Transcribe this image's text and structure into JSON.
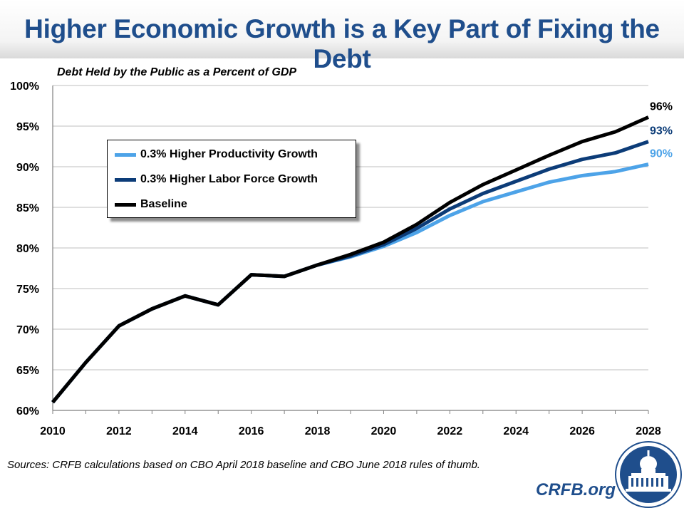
{
  "header": {
    "title": "Higher Economic Growth is a Key Part of Fixing the Debt"
  },
  "chart_data": {
    "type": "line",
    "title": "Debt Held by the Public as a Percent of GDP",
    "x": [
      2010,
      2011,
      2012,
      2013,
      2014,
      2015,
      2016,
      2017,
      2018,
      2019,
      2020,
      2021,
      2022,
      2023,
      2024,
      2025,
      2026,
      2027,
      2028
    ],
    "x_tick_labels": [
      "2010",
      "2012",
      "2014",
      "2016",
      "2018",
      "2020",
      "2022",
      "2024",
      "2026",
      "2028"
    ],
    "y_tick_labels": [
      "60%",
      "65%",
      "70%",
      "75%",
      "80%",
      "85%",
      "90%",
      "95%",
      "100%"
    ],
    "ylim": [
      60,
      100
    ],
    "xlim": [
      2010,
      2028
    ],
    "grid": true,
    "legend_position": "upper-left",
    "series": [
      {
        "name": "0.3% Higher Productivity Growth",
        "color": "#4da3e8",
        "values": [
          61,
          65.9,
          70.4,
          72.5,
          74.1,
          73,
          76.7,
          76.5,
          77.9,
          78.9,
          80.2,
          81.9,
          84,
          85.7,
          86.9,
          88.1,
          88.9,
          89.4,
          90.3
        ],
        "end_label": "90%"
      },
      {
        "name": "0.3% Higher Labor Force Growth",
        "color": "#0c3c78",
        "values": [
          61,
          65.9,
          70.4,
          72.5,
          74.1,
          73,
          76.7,
          76.5,
          77.9,
          79,
          80.4,
          82.4,
          84.8,
          86.7,
          88.2,
          89.7,
          90.9,
          91.7,
          93.1
        ],
        "end_label": "93%"
      },
      {
        "name": "Baseline",
        "color": "#000000",
        "values": [
          61,
          65.9,
          70.4,
          72.5,
          74.1,
          73,
          76.7,
          76.5,
          77.9,
          79.2,
          80.7,
          82.9,
          85.6,
          87.8,
          89.6,
          91.4,
          93.1,
          94.3,
          96.1
        ],
        "end_label": "96%"
      }
    ]
  },
  "footer": {
    "source": "Sources: CRFB calculations based on CBO April 2018 baseline and CBO June 2018 rules of thumb.",
    "brand": "CRFB.org"
  }
}
